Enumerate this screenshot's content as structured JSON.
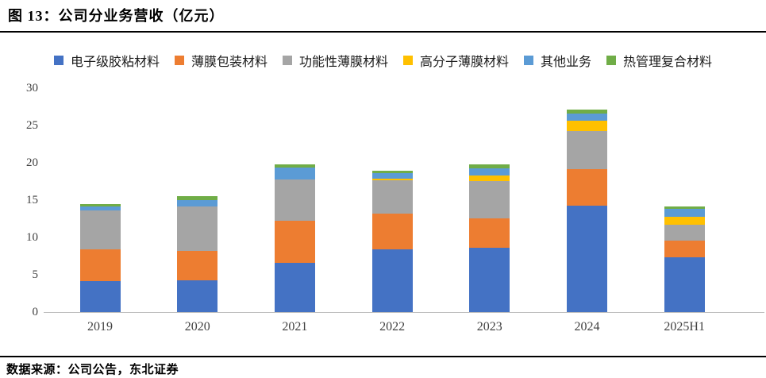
{
  "title": "图 13：公司分业务营收（亿元）",
  "footer": {
    "source": "数据来源：公司公告，东北证券"
  },
  "chart_data": {
    "type": "bar",
    "stacked": true,
    "title": "公司分业务营收（亿元）",
    "xlabel": "",
    "ylabel": "",
    "ylim": [
      0,
      30
    ],
    "yticks": [
      0,
      5,
      10,
      15,
      20,
      25,
      30
    ],
    "grid": false,
    "legend_position": "top",
    "categories": [
      "2019",
      "2020",
      "2021",
      "2022",
      "2023",
      "2024",
      "2025H1"
    ],
    "series": [
      {
        "name": "电子级胶粘材料",
        "color": "#4472C4",
        "values": [
          4.2,
          4.3,
          6.6,
          8.4,
          8.6,
          14.3,
          7.3
        ]
      },
      {
        "name": "薄膜包装材料",
        "color": "#ED7D31",
        "values": [
          4.2,
          3.9,
          5.6,
          4.8,
          4.0,
          4.8,
          2.3
        ]
      },
      {
        "name": "功能性薄膜材料",
        "color": "#A5A5A5",
        "values": [
          5.2,
          5.9,
          5.6,
          4.5,
          5.0,
          5.2,
          2.1
        ]
      },
      {
        "name": "高分子薄膜材料",
        "color": "#FFC000",
        "values": [
          0,
          0,
          0,
          0.2,
          0.7,
          1.3,
          1.1
        ]
      },
      {
        "name": "其他业务",
        "color": "#5B9BD5",
        "values": [
          0.6,
          0.9,
          1.6,
          0.7,
          1.0,
          1.0,
          1.0
        ]
      },
      {
        "name": "热管理复合材料",
        "color": "#70AD47",
        "values": [
          0.3,
          0.5,
          0.4,
          0.3,
          0.5,
          0.5,
          0.4
        ]
      }
    ],
    "axis_colors": {
      "axis_line": "#BFBFBF",
      "tick_text": "#404040"
    }
  }
}
